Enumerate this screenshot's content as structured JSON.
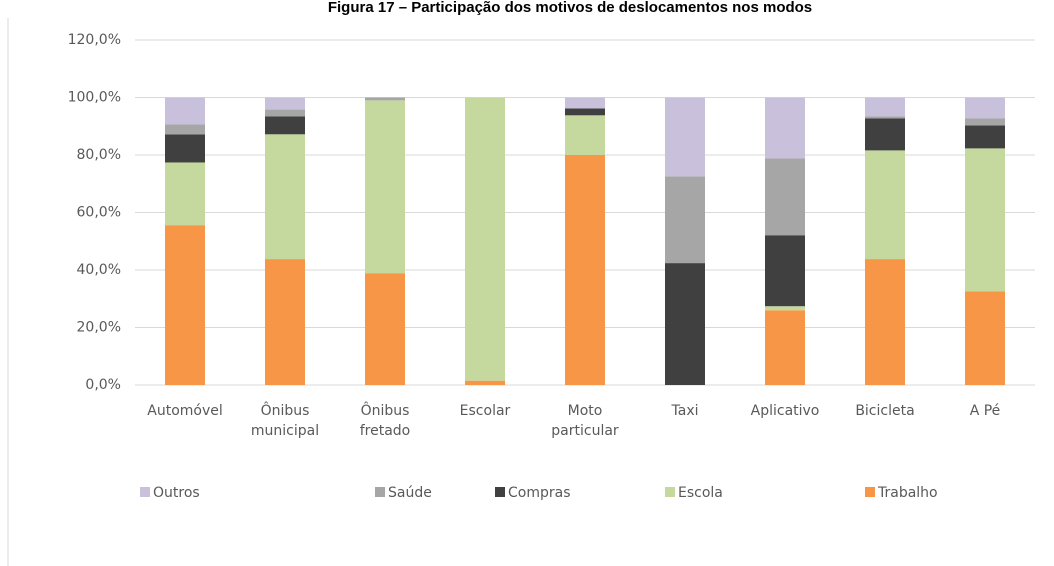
{
  "chart_data": {
    "type": "stacked_bar",
    "title": "Figura 17 – Participação dos motivos de deslocamentos nos modos",
    "categories": [
      "Automóvel",
      "Ônibus municipal",
      "Ônibus fretado",
      "Escolar",
      "Moto particular",
      "Taxi",
      "Aplicativo",
      "Bicicleta",
      "A Pé"
    ],
    "series": [
      {
        "name": "Trabalho",
        "color": "#f79646",
        "values": [
          55.6,
          43.8,
          38.9,
          1.5,
          80.0,
          0,
          26.0,
          43.8,
          32.6
        ]
      },
      {
        "name": "Escola",
        "color": "#c5d99e",
        "values": [
          21.8,
          43.4,
          60.1,
          98.5,
          13.8,
          0,
          1.4,
          37.8,
          49.7
        ]
      },
      {
        "name": "Compras",
        "color": "#404040",
        "values": [
          9.8,
          6.2,
          0,
          0,
          2.4,
          42.4,
          24.7,
          11.1,
          8.0
        ]
      },
      {
        "name": "Saúde",
        "color": "#a6a6a6",
        "values": [
          3.4,
          2.4,
          1.0,
          0,
          0,
          30.2,
          26.7,
          0.7,
          2.4
        ]
      },
      {
        "name": "Outros",
        "color": "#c9c1dc",
        "values": [
          9.4,
          4.2,
          0,
          0,
          3.8,
          27.4,
          21.2,
          6.6,
          7.3
        ]
      }
    ],
    "ylim": [
      0,
      120
    ],
    "yticks": [
      {
        "value": 0,
        "label": "0,0%"
      },
      {
        "value": 20,
        "label": "20,0%"
      },
      {
        "value": 40,
        "label": "40,0%"
      },
      {
        "value": 60,
        "label": "60,0%"
      },
      {
        "value": 80,
        "label": "80,0%"
      },
      {
        "value": 100,
        "label": "100,0%"
      },
      {
        "value": 120,
        "label": "120,0%"
      }
    ],
    "grid": true
  }
}
